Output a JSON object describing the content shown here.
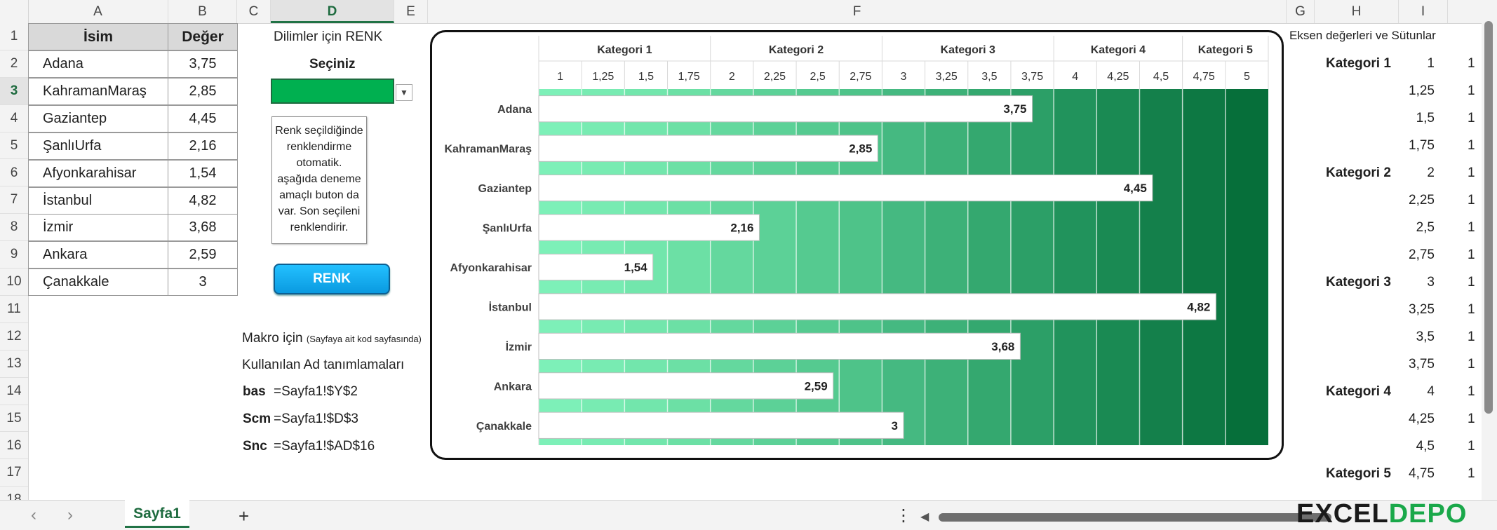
{
  "columns": [
    "A",
    "B",
    "C",
    "D",
    "E",
    "F",
    "G",
    "H",
    "I"
  ],
  "rows": [
    "1",
    "2",
    "3",
    "4",
    "5",
    "6",
    "7",
    "8",
    "9",
    "10",
    "11",
    "12",
    "13",
    "14",
    "15",
    "16",
    "17",
    "18"
  ],
  "table": {
    "header_name": "İsim",
    "header_value": "Değer",
    "rows": [
      {
        "name": "Adana",
        "value": "3,75"
      },
      {
        "name": "KahramanMaraş",
        "value": "2,85"
      },
      {
        "name": "Gaziantep",
        "value": "4,45"
      },
      {
        "name": "ŞanlıUrfa",
        "value": "2,16"
      },
      {
        "name": "Afyonkarahisar",
        "value": "1,54"
      },
      {
        "name": "İstanbul",
        "value": "4,82"
      },
      {
        "name": "İzmir",
        "value": "3,68"
      },
      {
        "name": "Ankara",
        "value": "2,59"
      },
      {
        "name": "Çanakkale",
        "value": "3"
      }
    ]
  },
  "color_picker": {
    "label": "Dilimler için RENK",
    "select_label": "Seçiniz",
    "selected_color": "#00b050",
    "note": [
      "Renk seçildiğinde",
      "renklendirme",
      "otomatik.",
      "aşağıda deneme",
      "amaçlı buton da",
      "var. Son seçileni",
      "renklendirir."
    ],
    "button_label": "RENK"
  },
  "macro": {
    "line1_main": "Makro için",
    "line1_small": "(Sayfaya ait kod sayfasında)",
    "line2": "Kullanılan Ad tanımlamaları",
    "names": [
      {
        "name": "bas",
        "ref": "=Sayfa1!$Y$2"
      },
      {
        "name": "Scm",
        "ref": "=Sayfa1!$D$3"
      },
      {
        "name": "Snc",
        "ref": "=Sayfa1!$AD$16"
      }
    ]
  },
  "side_table": {
    "title": "Eksen değerleri ve Sütunlar",
    "rows": [
      {
        "cat": "Kategori 1",
        "val": "1",
        "extra": "1"
      },
      {
        "cat": "",
        "val": "1,25",
        "extra": "1"
      },
      {
        "cat": "",
        "val": "1,5",
        "extra": "1"
      },
      {
        "cat": "",
        "val": "1,75",
        "extra": "1"
      },
      {
        "cat": "Kategori 2",
        "val": "2",
        "extra": "1"
      },
      {
        "cat": "",
        "val": "2,25",
        "extra": "1"
      },
      {
        "cat": "",
        "val": "2,5",
        "extra": "1"
      },
      {
        "cat": "",
        "val": "2,75",
        "extra": "1"
      },
      {
        "cat": "Kategori 3",
        "val": "3",
        "extra": "1"
      },
      {
        "cat": "",
        "val": "3,25",
        "extra": "1"
      },
      {
        "cat": "",
        "val": "3,5",
        "extra": "1"
      },
      {
        "cat": "",
        "val": "3,75",
        "extra": "1"
      },
      {
        "cat": "Kategori 4",
        "val": "4",
        "extra": "1"
      },
      {
        "cat": "",
        "val": "4,25",
        "extra": "1"
      },
      {
        "cat": "",
        "val": "4,5",
        "extra": "1"
      },
      {
        "cat": "Kategori 5",
        "val": "4,75",
        "extra": "1"
      }
    ]
  },
  "sheet_tab": "Sayfa1",
  "add_sheet": "+",
  "nav": {
    "prev": "‹",
    "next": "›",
    "more": "⋮",
    "scroll_left": "◀"
  },
  "logo": {
    "part1": "EXCEL",
    "part2": "DEPO"
  },
  "chart_data": {
    "type": "bar",
    "orientation": "horizontal",
    "categories": [
      "Adana",
      "KahramanMaraş",
      "Gaziantep",
      "ŞanlıUrfa",
      "Afyonkarahisar",
      "İstanbul",
      "İzmir",
      "Ankara",
      "Çanakkale"
    ],
    "values": [
      3.75,
      2.85,
      4.45,
      2.16,
      1.54,
      4.82,
      3.68,
      2.59,
      3
    ],
    "value_labels": [
      "3,75",
      "2,85",
      "4,45",
      "2,16",
      "1,54",
      "4,82",
      "3,68",
      "2,59",
      "3"
    ],
    "axis_ticks": [
      "1",
      "1,25",
      "1,5",
      "1,75",
      "2",
      "2,25",
      "2,5",
      "2,75",
      "3",
      "3,25",
      "3,5",
      "3,75",
      "4",
      "4,25",
      "4,5",
      "4,75",
      "5"
    ],
    "axis_tick_values": [
      1,
      1.25,
      1.5,
      1.75,
      2,
      2.25,
      2.5,
      2.75,
      3,
      3.25,
      3.5,
      3.75,
      4,
      4.25,
      4.5,
      4.75,
      5
    ],
    "xlim": [
      0.875,
      5.125
    ],
    "top_categories": [
      {
        "label": "Kategori 1",
        "from": 0.875,
        "to": 1.875
      },
      {
        "label": "Kategori 2",
        "from": 1.875,
        "to": 2.875
      },
      {
        "label": "Kategori 3",
        "from": 2.875,
        "to": 3.875
      },
      {
        "label": "Kategori 4",
        "from": 3.875,
        "to": 4.625
      },
      {
        "label": "Kategori 5",
        "from": 4.625,
        "to": 5.125
      }
    ],
    "bar_color": "#ffffff",
    "band_colors": [
      "#7df0b8",
      "#78ebb2",
      "#72e6ac",
      "#6ce0a5",
      "#64d89e",
      "#5cd197",
      "#55ca90",
      "#4ec389",
      "#45b981",
      "#3db178",
      "#34a86f",
      "#2c9f67",
      "#21935c",
      "#1a8a53",
      "#14804b",
      "#0d7843",
      "#066f3a"
    ]
  }
}
